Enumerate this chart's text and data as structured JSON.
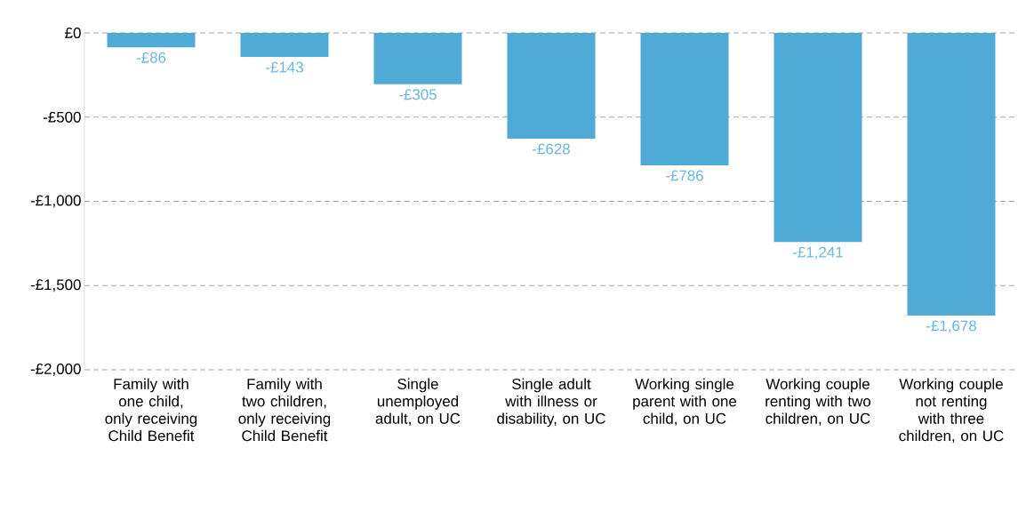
{
  "chart_data": {
    "type": "bar",
    "categories": [
      "Family with one child, only receiving Child Benefit",
      "Family with two children, only receiving Child Benefit",
      "Single unemployed adult, on UC",
      "Single adult with illness or disability, on UC",
      "Working single parent with one child, on UC",
      "Working couple renting with two children, on UC",
      "Working couple not renting with three children, on UC"
    ],
    "values": [
      -86,
      -143,
      -305,
      -628,
      -786,
      -1241,
      -1678
    ],
    "value_labels": [
      "-£86",
      "-£143",
      "-£305",
      "-£628",
      "-£786",
      "-£1,241",
      "-£1,678"
    ],
    "color": "#4fabd5",
    "ylim": [
      -2000,
      0
    ],
    "yticks": [
      {
        "value": 0,
        "label": "£0"
      },
      {
        "value": -500,
        "label": "-£500"
      },
      {
        "value": -1000,
        "label": "-£1,000"
      },
      {
        "value": -1500,
        "label": "-£1,500"
      },
      {
        "value": -2000,
        "label": "-£2,000"
      }
    ],
    "grid": "y"
  }
}
